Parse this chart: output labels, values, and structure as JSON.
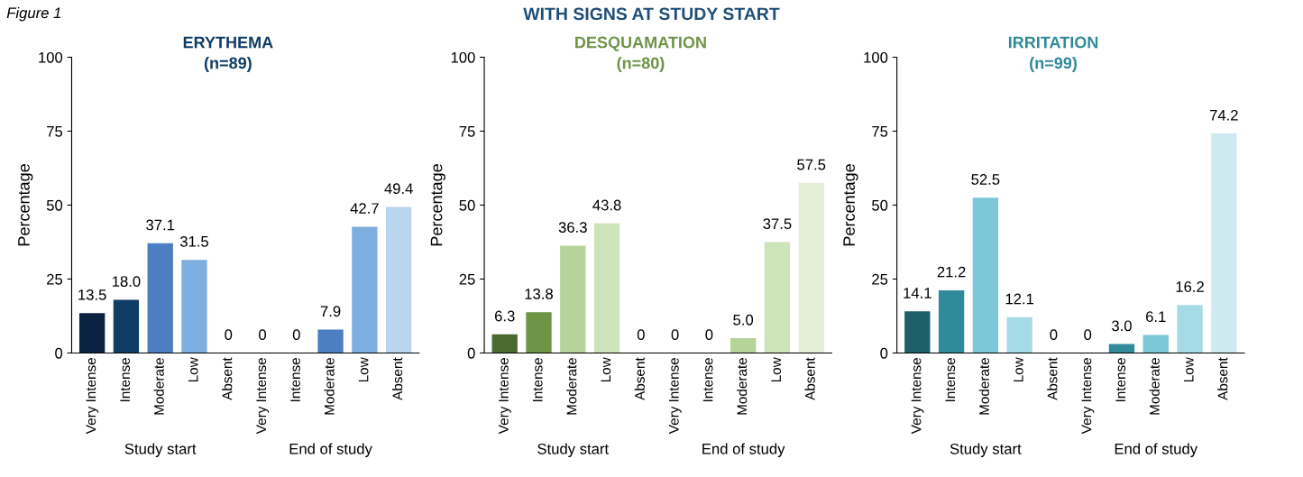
{
  "chart_data": [
    {
      "type": "bar",
      "title": "ERYTHEMA",
      "subtitle": "(n=89)",
      "ylabel": "Percentage",
      "categories": [
        "Very Intense",
        "Intense",
        "Moderate",
        "Low",
        "Absent",
        "Very Intense",
        "Intense",
        "Moderate",
        "Low",
        "Absent"
      ],
      "values": [
        13.5,
        18.0,
        37.1,
        31.5,
        0,
        0,
        0,
        7.9,
        42.7,
        49.4
      ],
      "value_labels": [
        "13.5",
        "18.0",
        "37.1",
        "31.5",
        "0",
        "0",
        "0",
        "7.9",
        "42.7",
        "49.4"
      ],
      "colors": [
        "#0b2340",
        "#0f3d66",
        "#4b7fc2",
        "#7eaee0",
        "#b9d4ef",
        "#0b2340",
        "#0f3d66",
        "#4b7fc2",
        "#7eaee0",
        "#b9d4ef"
      ],
      "ylim": [
        0,
        100
      ],
      "yticks": [
        0,
        25,
        50,
        75,
        100
      ],
      "annotations": [
        "Figure 1",
        "WITH SIGNS AT STUDY START",
        "Study start",
        "End of study"
      ]
    },
    {
      "type": "bar",
      "title": "DESQUAMATION",
      "subtitle": "(n=80)",
      "ylabel": "Percentage",
      "categories": [
        "Very Intense",
        "Intense",
        "Moderate",
        "Low",
        "Absent",
        "Very Intense",
        "Intense",
        "Moderate",
        "Low",
        "Absent"
      ],
      "values": [
        6.3,
        13.8,
        36.3,
        43.8,
        0,
        0,
        0,
        5.0,
        37.5,
        57.5
      ],
      "value_labels": [
        "6.3",
        "13.8",
        "36.3",
        "43.8",
        "0",
        "0",
        "0",
        "5.0",
        "37.5",
        "57.5"
      ],
      "colors": [
        "#4a6a2f",
        "#6e9446",
        "#b6d39a",
        "#cde3b8",
        "#e3efd6",
        "#4a6a2f",
        "#6e9446",
        "#b6d39a",
        "#cde3b8",
        "#e3efd6"
      ],
      "ylim": [
        0,
        100
      ],
      "yticks": [
        0,
        25,
        50,
        75,
        100
      ],
      "annotations": [
        "Study start",
        "End of study"
      ]
    },
    {
      "type": "bar",
      "title": "IRRITATION",
      "subtitle": "(n=99)",
      "ylabel": "Percentage",
      "categories": [
        "Very Intense",
        "Intense",
        "Moderate",
        "Low",
        "Absent",
        "Very Intense",
        "Intense",
        "Moderate",
        "Low",
        "Absent"
      ],
      "values": [
        14.1,
        21.2,
        52.5,
        12.1,
        0,
        0,
        3.0,
        6.1,
        16.2,
        74.2
      ],
      "value_labels": [
        "14.1",
        "21.2",
        "52.5",
        "12.1",
        "0",
        "0",
        "3.0",
        "6.1",
        "16.2",
        "74.2"
      ],
      "colors": [
        "#1d5f6a",
        "#2f8a9a",
        "#7cc7d8",
        "#a6dbe6",
        "#cdeaf1",
        "#1d5f6a",
        "#2f8a9a",
        "#7cc7d8",
        "#a6dbe6",
        "#cdeaf1"
      ],
      "ylim": [
        0,
        100
      ],
      "yticks": [
        0,
        25,
        50,
        75,
        100
      ],
      "annotations": [
        "Study start",
        "End of study"
      ]
    }
  ]
}
